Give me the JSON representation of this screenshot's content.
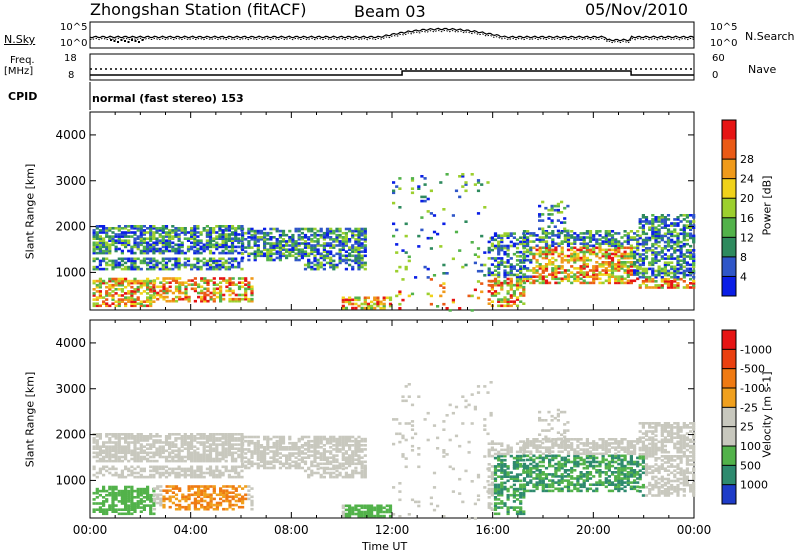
{
  "header": {
    "station": "Zhongshan Station (fitACF)",
    "beam": "Beam 03",
    "date": "05/Nov/2010"
  },
  "sky_panel": {
    "left_label": "N.Sky",
    "right_label": "N.Search",
    "left_ticks": [
      "10^5",
      "10^0"
    ],
    "right_ticks": [
      "10^5",
      "10^0"
    ]
  },
  "freq_panel": {
    "left_label_1": "Freq.",
    "left_label_2": "[MHz]",
    "right_label": "Nave",
    "left_ticks": [
      "18",
      "8"
    ],
    "right_ticks": [
      "60",
      "0"
    ]
  },
  "cpid": {
    "label": "CPID",
    "value": "normal (fast stereo) 153"
  },
  "x_axis": {
    "ticks": [
      "00:00",
      "04:00",
      "08:00",
      "12:00",
      "16:00",
      "20:00",
      "00:00"
    ],
    "label": "Time UT"
  },
  "chart_data": [
    {
      "type": "heatmap",
      "ylabel": "Slant Range [km]",
      "y_ticks": [
        1000,
        2000,
        3000,
        4000
      ],
      "ylim": [
        180,
        4500
      ],
      "xlim_hours": [
        0,
        24
      ],
      "colorbar": {
        "label": "Power [dB]",
        "tick_labels": [
          "4",
          "8",
          "12",
          "16",
          "20",
          "24",
          "28"
        ],
        "colors": [
          "#0a1ee6",
          "#2f56c8",
          "#2e8a5e",
          "#52b24a",
          "#9ccf2e",
          "#f0d21a",
          "#f09a1a",
          "#ea5a16",
          "#e61414"
        ]
      }
    },
    {
      "type": "heatmap",
      "ylabel": "Slant Range [km]",
      "y_ticks": [
        1000,
        2000,
        3000,
        4000
      ],
      "ylim": [
        180,
        4500
      ],
      "xlim_hours": [
        0,
        24
      ],
      "colorbar": {
        "label": "Velocity [m s-1]",
        "tick_labels": [
          "1000",
          "500",
          "100",
          "25",
          "-25",
          "-100",
          "-500",
          "-1000"
        ],
        "colors": [
          "#1e3cc8",
          "#2e8a6e",
          "#52b24a",
          "#c8c8be",
          "#c8c8be",
          "#f0a01e",
          "#ef7a12",
          "#ea4010",
          "#e61414"
        ]
      }
    }
  ]
}
